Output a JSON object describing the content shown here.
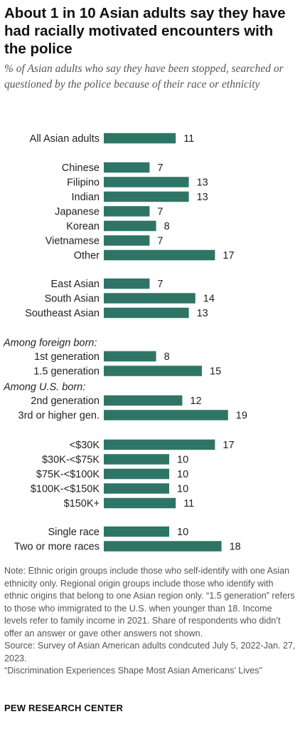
{
  "header": {
    "title": "About 1 in 10 Asian adults say they have had racially motivated encounters with the police",
    "subtitle": "% of Asian adults who say they have been stopped, searched or questioned by the police because of their race or ethnicity"
  },
  "chart_data": {
    "type": "bar",
    "orientation": "horizontal",
    "bar_color": "#2f7566",
    "xlim": [
      0,
      20
    ],
    "groups": [
      {
        "heading": "",
        "rows": [
          {
            "label": "All Asian adults",
            "value": 11
          }
        ]
      },
      {
        "heading": "",
        "rows": [
          {
            "label": "Chinese",
            "value": 7
          },
          {
            "label": "Filipino",
            "value": 13
          },
          {
            "label": "Indian",
            "value": 13
          },
          {
            "label": "Japanese",
            "value": 7
          },
          {
            "label": "Korean",
            "value": 8
          },
          {
            "label": "Vietnamese",
            "value": 7
          },
          {
            "label": "Other",
            "value": 17
          }
        ]
      },
      {
        "heading": "",
        "rows": [
          {
            "label": "East Asian",
            "value": 7
          },
          {
            "label": "South Asian",
            "value": 14
          },
          {
            "label": "Southeast Asian",
            "value": 13
          }
        ]
      },
      {
        "heading": "Among foreign born:",
        "rows": [
          {
            "label": "1st generation",
            "value": 8
          },
          {
            "label": "1.5 generation",
            "value": 15
          }
        ]
      },
      {
        "heading": "Among U.S. born:",
        "rows": [
          {
            "label": "2nd generation",
            "value": 12
          },
          {
            "label": "3rd or higher gen.",
            "value": 19
          }
        ]
      },
      {
        "heading": "",
        "rows": [
          {
            "label": "<$30K",
            "value": 17
          },
          {
            "label": "$30K-<$75K",
            "value": 10
          },
          {
            "label": "$75K-<$100K",
            "value": 10
          },
          {
            "label": "$100K-<$150K",
            "value": 10
          },
          {
            "label": "$150K+",
            "value": 11
          }
        ]
      },
      {
        "heading": "",
        "rows": [
          {
            "label": "Single race",
            "value": 10
          },
          {
            "label": "Two or more races",
            "value": 18
          }
        ]
      }
    ]
  },
  "footer": {
    "note": "Note: Ethnic origin groups include those who self-identify with one Asian ethnicity only. Regional origin groups include those who identify with ethnic origins that belong to one Asian region only. “1.5 generation” refers to those who immigrated to the U.S. when younger than 18. Income levels refer to family income in 2021. Share of respondents who didn’t offer an answer or gave other answers not shown.",
    "source": "Source: Survey of Asian American adults condcuted July 5, 2022-Jan. 27, 2023.",
    "report": "“Discrimination Experiences Shape Most Asian Americans’ Lives”",
    "brand": "PEW RESEARCH CENTER"
  }
}
